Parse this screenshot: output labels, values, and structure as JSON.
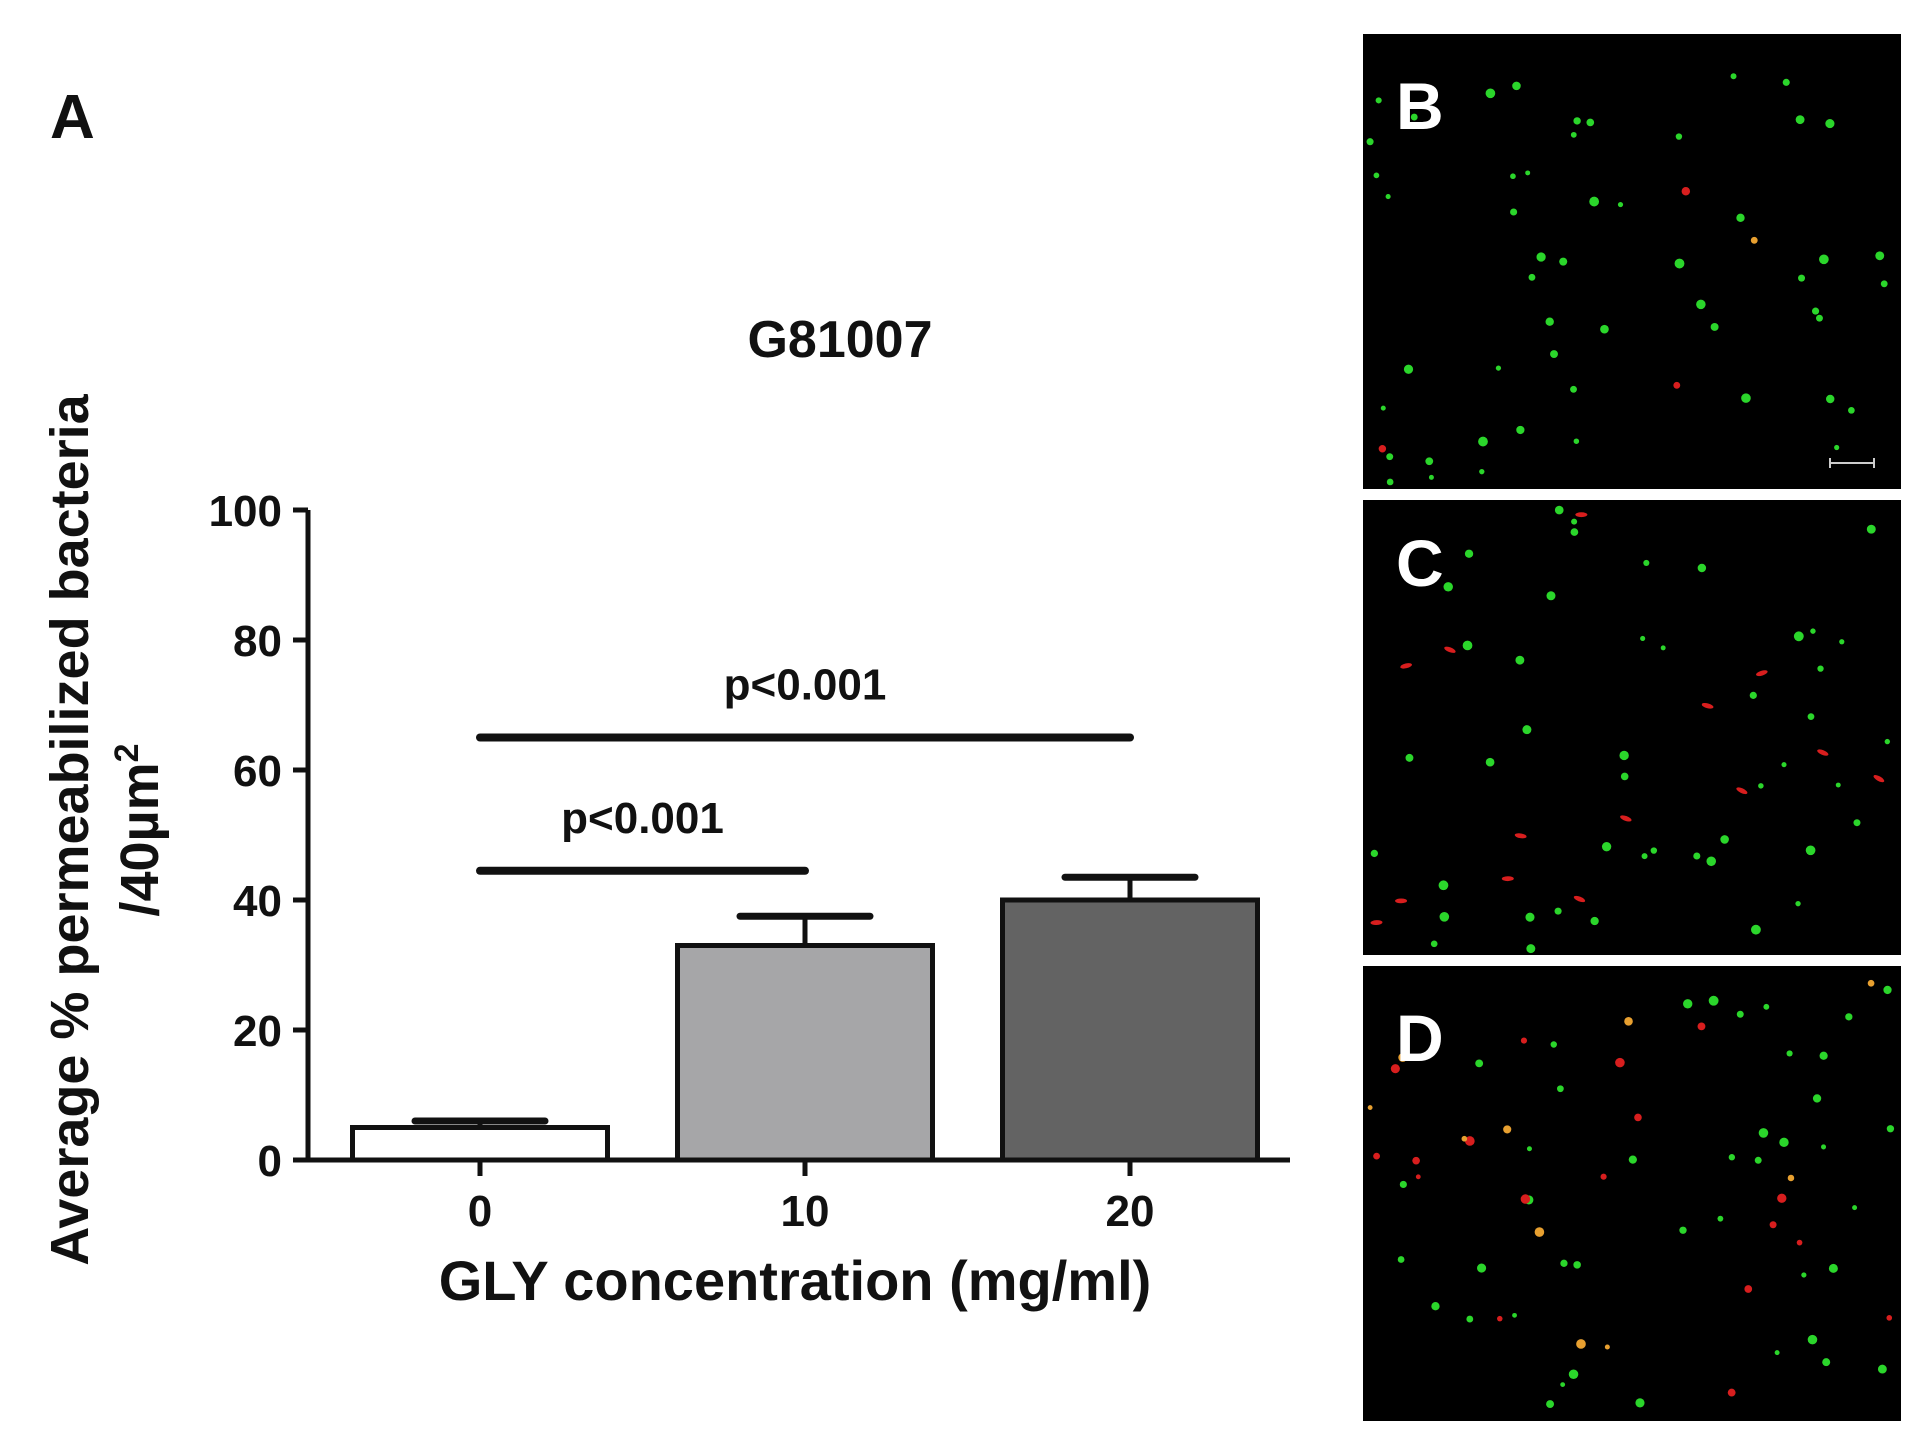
{
  "panels": {
    "A": {
      "letter": "A"
    },
    "B": {
      "letter": "B"
    },
    "C": {
      "letter": "C"
    },
    "D": {
      "letter": "D"
    }
  },
  "chart_data": {
    "type": "bar",
    "title": "G81007",
    "xlabel": "GLY concentration (mg/ml)",
    "ylabel_line1": "Average % permeabilized bacteria",
    "ylabel_line2": "/40µm",
    "ylabel_superscript": "2",
    "categories": [
      "0",
      "10",
      "20"
    ],
    "values": [
      5,
      33,
      40
    ],
    "errors": [
      1,
      4.5,
      3.5
    ],
    "bar_colors": [
      "#ffffff",
      "#a6a6a8",
      "#636363"
    ],
    "ylim": [
      0,
      100
    ],
    "yticks": [
      "0",
      "20",
      "40",
      "60",
      "80",
      "100"
    ],
    "annotations": [
      {
        "text": "p<0.001",
        "from": "0",
        "to": "10",
        "y": 44.5
      },
      {
        "text": "p<0.001",
        "from": "0",
        "to": "20",
        "y": 65
      }
    ],
    "grid": false
  },
  "images": {
    "background_color": "#000000",
    "green_color": "#2bd62b",
    "red_color": "#d81e1e",
    "orange_color": "#e8a030"
  }
}
